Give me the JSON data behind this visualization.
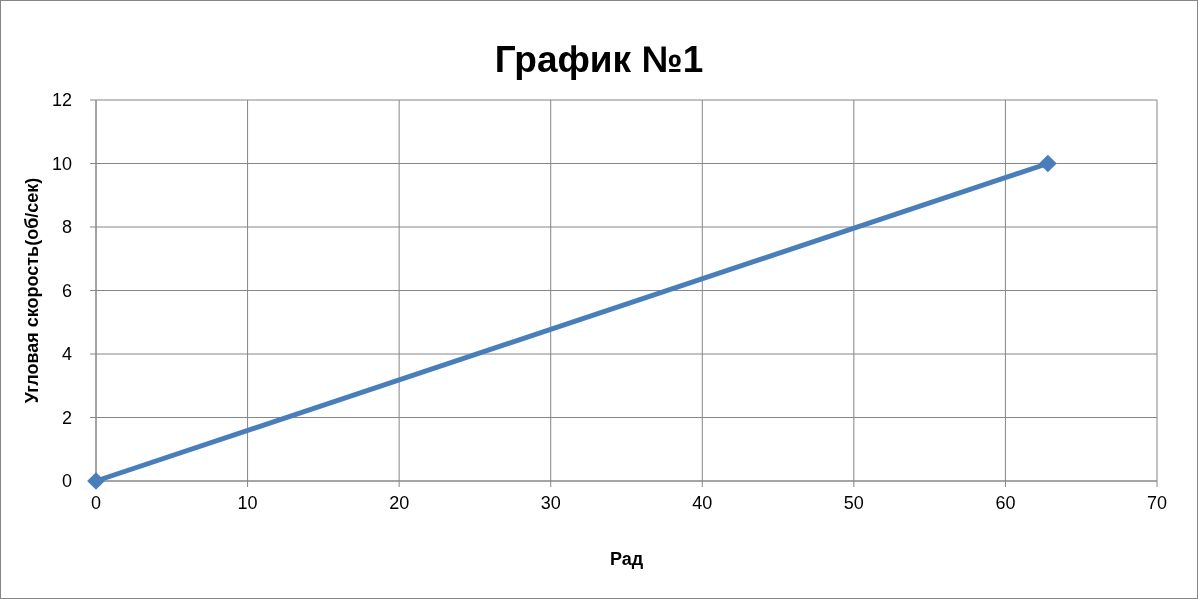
{
  "chart_data": {
    "type": "line",
    "title": "График №1",
    "xlabel": "Рад",
    "ylabel": "Угловая скорость(об/сек)",
    "x": [
      0,
      62.8
    ],
    "series": [
      {
        "color": "#4a7ebb",
        "values": [
          0,
          10
        ]
      }
    ],
    "xlim": [
      0,
      70
    ],
    "xticks": [
      0,
      10,
      20,
      30,
      40,
      50,
      60,
      70
    ],
    "ylim": [
      0,
      12
    ],
    "yticks": [
      0,
      2,
      4,
      6,
      8,
      10,
      12
    ],
    "grid": true,
    "marker": "diamond"
  }
}
